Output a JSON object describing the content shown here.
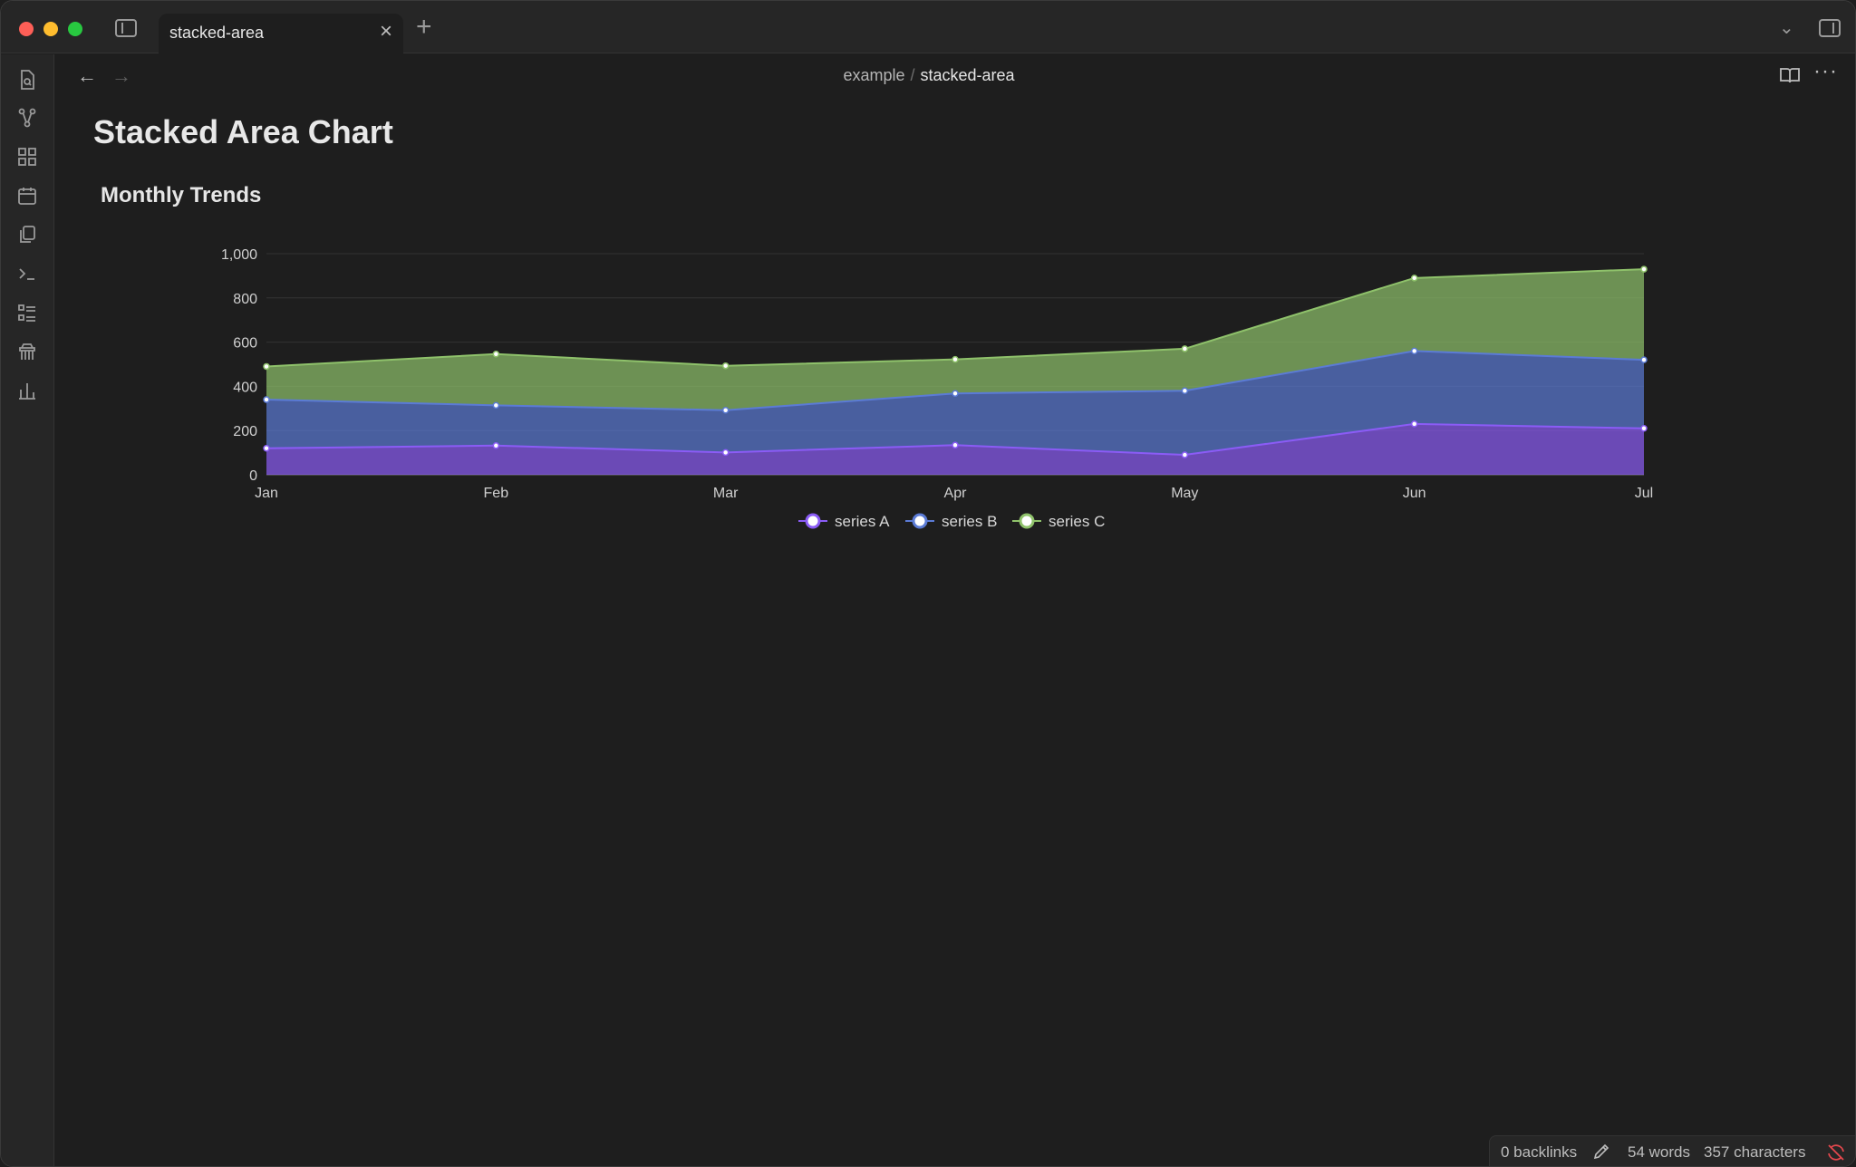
{
  "tab": {
    "title": "stacked-area"
  },
  "breadcrumb": {
    "parent": "example",
    "separator": "/",
    "current": "stacked-area"
  },
  "ribbon": {
    "icons": [
      "file-search-icon",
      "graph-view-icon",
      "canvas-icon",
      "calendar-icon",
      "copy-files-icon",
      "terminal-icon",
      "list-icon",
      "archive-icon",
      "bar-chart-icon"
    ]
  },
  "page": {
    "title": "Stacked Area Chart",
    "section_title": "Monthly Trends"
  },
  "chart_data": {
    "type": "area",
    "stacked": true,
    "categories": [
      "Jan",
      "Feb",
      "Mar",
      "Apr",
      "May",
      "Jun",
      "Jul"
    ],
    "series": [
      {
        "name": "series A",
        "values": [
          120,
          132,
          101,
          134,
          90,
          230,
          210
        ],
        "color": "#8b5cf6"
      },
      {
        "name": "series B",
        "values": [
          220,
          182,
          191,
          234,
          290,
          330,
          310
        ],
        "color": "#5b7bd5"
      },
      {
        "name": "series C",
        "values": [
          150,
          232,
          201,
          154,
          190,
          330,
          410
        ],
        "color": "#8fc26b"
      }
    ],
    "ylim": [
      0,
      1000
    ],
    "yticks": [
      0,
      200,
      400,
      600,
      800,
      1000
    ],
    "ytick_labels": [
      "0",
      "200",
      "400",
      "600",
      "800",
      "1,000"
    ],
    "grid": true,
    "legend_position": "bottom-center"
  },
  "statusbar": {
    "backlinks": "0 backlinks",
    "words": "54 words",
    "characters": "357 characters"
  },
  "colors": {
    "background": "#1e1e1e",
    "chrome": "#262626",
    "sync_error": "#e5484d"
  }
}
